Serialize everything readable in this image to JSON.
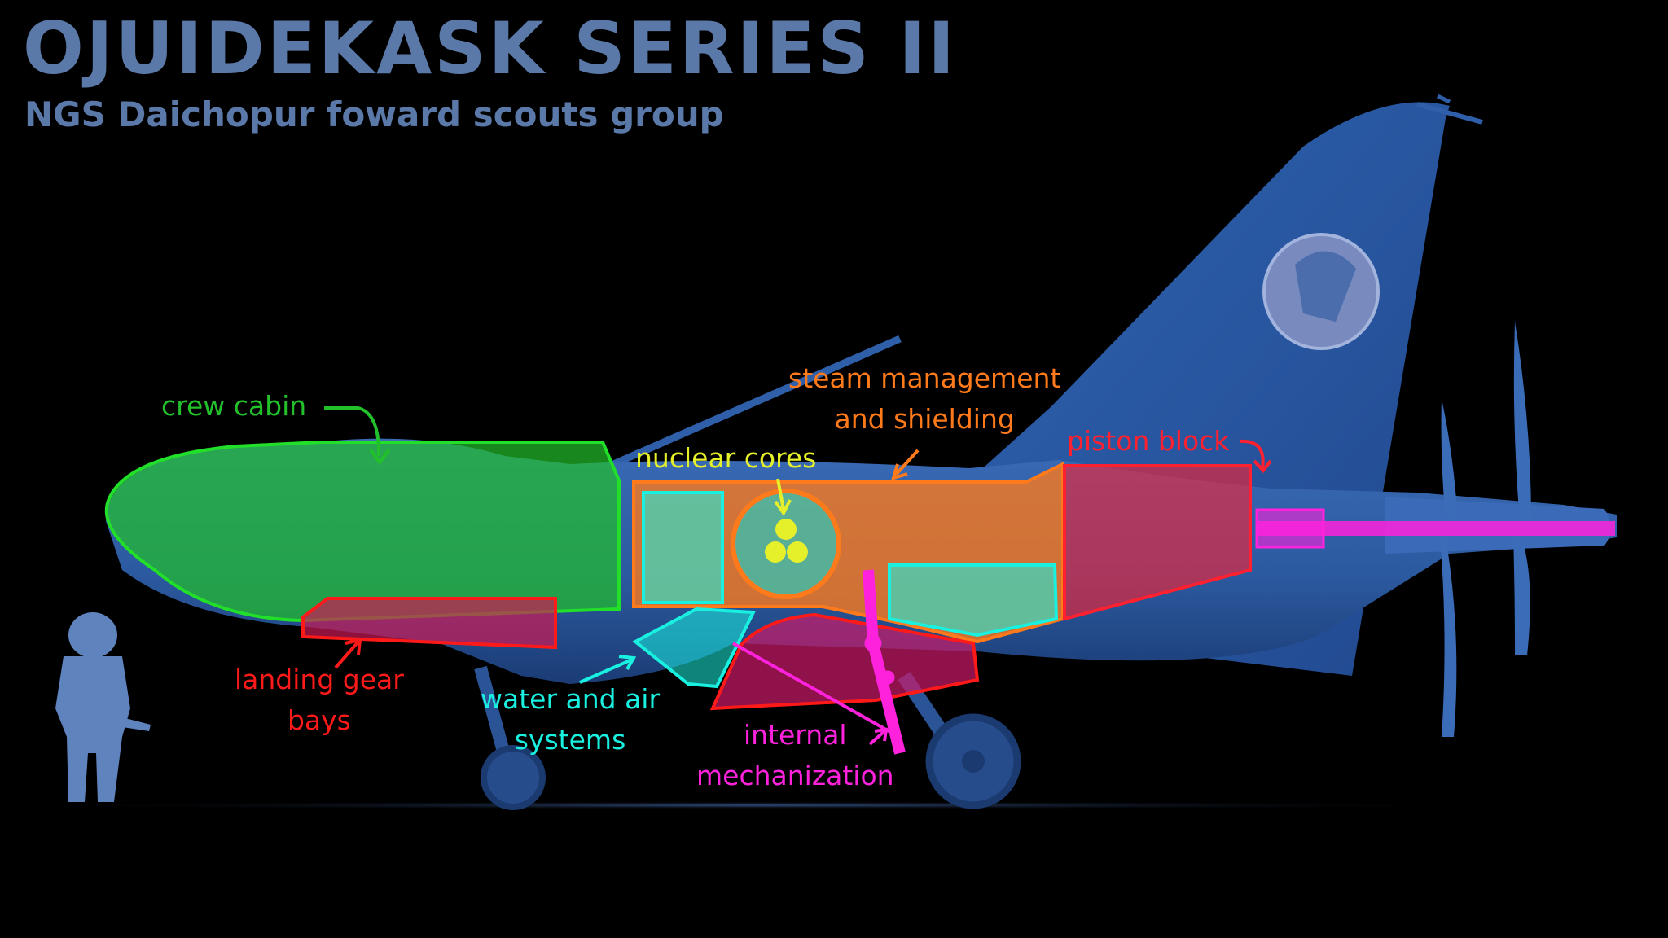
{
  "title": "OJUIDEKASK SERIES II",
  "subtitle": "NGS Daichopur foward scouts group",
  "colors": {
    "background": "#000000",
    "title": "#5b79a8",
    "hull": "#2d5a9e",
    "crew_cabin": "#22c02a",
    "landing_gear": "#ff1a1a",
    "nuclear_cores": "#e6f02a",
    "steam": "#ff7a1a",
    "water_air": "#19f0e0",
    "piston_block": "#ff2030",
    "mechanization": "#ff22dd"
  },
  "labels": {
    "crew_cabin": "crew cabin",
    "nuclear_cores": "nuclear cores",
    "steam_line1": "steam management",
    "steam_line2": "and shielding",
    "piston_block": "piston block",
    "landing_gear_line1": "landing gear",
    "landing_gear_line2": "bays",
    "water_air_line1": "water and air",
    "water_air_line2": "systems",
    "mechanization_line1": "internal",
    "mechanization_line2": "mechanization"
  }
}
